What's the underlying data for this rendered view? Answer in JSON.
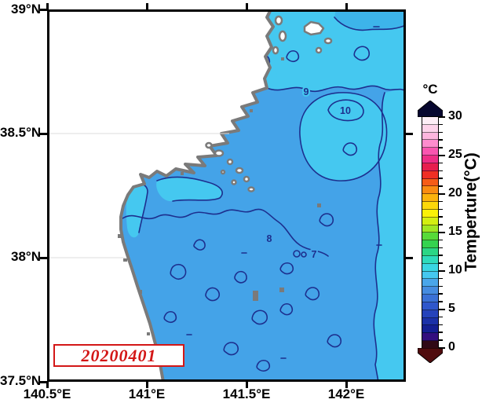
{
  "figure": {
    "map": {
      "x_tick_labels": [
        "140.5°E",
        "141°E",
        "141.5°E",
        "142°E"
      ],
      "y_tick_labels": [
        "39°N",
        "38.5°N",
        "38°N",
        "37.5°N"
      ],
      "contour_labels": [
        "9",
        "10",
        "8",
        "7"
      ],
      "date_stamp": "20200401",
      "colors": {
        "sea_main": "#44a3e8",
        "sea_warm": "#45c8f0",
        "sea_cool_patch": "#3db4ea",
        "land": "#ffffff",
        "coast": "#7a7a7a",
        "contour": "#1d2f8e",
        "date_red": "#d31717"
      }
    },
    "colorbar": {
      "unit_label": "°C",
      "axis_title": "Temperture(°C)",
      "tick_labels": [
        "30",
        "25",
        "20",
        "15",
        "10",
        "5",
        "0"
      ],
      "range": [
        0,
        30
      ],
      "cells_top_to_bottom": [
        "#fdeef6",
        "#fdd3ea",
        "#feb6de",
        "#fe8cce",
        "#f955b0",
        "#ee2d86",
        "#e71e4e",
        "#ef2f24",
        "#f65c17",
        "#fa8c12",
        "#fcb30d",
        "#fdd80a",
        "#faf107",
        "#d3ef11",
        "#9fe723",
        "#57da39",
        "#35d34f",
        "#2bd685",
        "#2edbbb",
        "#39d6e2",
        "#45c8f0",
        "#4aa6ea",
        "#468ce0",
        "#3b71d6",
        "#2f57cb",
        "#2543bb",
        "#1b31a8",
        "#141f92",
        "#330e7e",
        "#300916"
      ],
      "top_arrow_color": "#07072f",
      "bottom_arrow_color": "#500c0e"
    },
    "chart_data": {
      "type": "heatmap",
      "title": "",
      "xlabel_ticks": [
        "140.5°E",
        "141°E",
        "141.5°E",
        "142°E"
      ],
      "ylabel_ticks": [
        "39°N",
        "38.5°N",
        "38°N",
        "37.5°N"
      ],
      "colorbar_title": "Temperture(°C)",
      "colorbar_range": [
        0,
        30
      ],
      "colorbar_tick_step": 5,
      "visible_contour_values": [
        7,
        8,
        9,
        10
      ],
      "date_annotation": "20200401",
      "description_visible_field": "sea temperature ~7-10 °C over bay; land white; coast gray"
    }
  }
}
